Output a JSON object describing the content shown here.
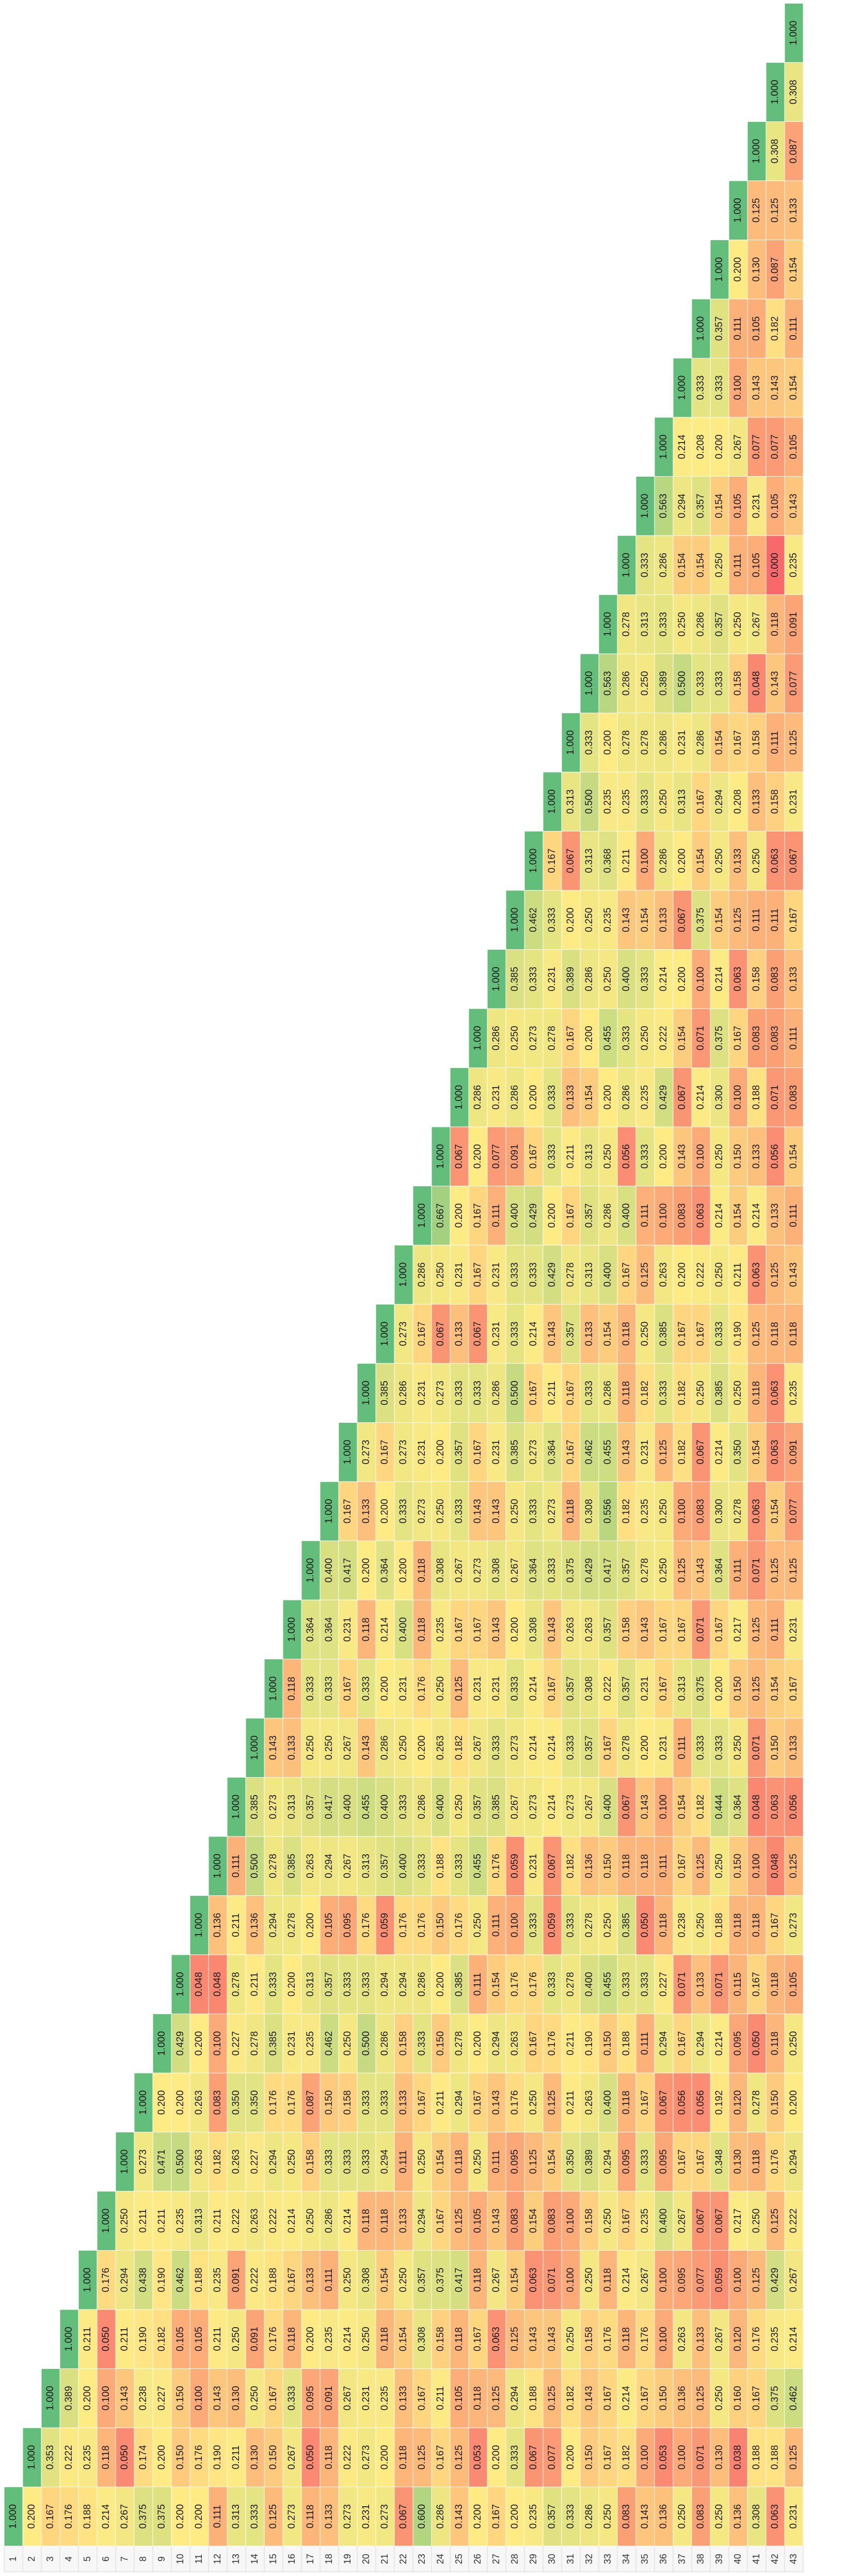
{
  "table": {
    "row_labels": [
      "1",
      "2",
      "3",
      "4",
      "5",
      "6",
      "7",
      "8",
      "9",
      "10",
      "11",
      "12",
      "13",
      "14",
      "15",
      "16",
      "17",
      "18",
      "19",
      "20",
      "21",
      "22",
      "23",
      "24",
      "25",
      "26",
      "27",
      "28",
      "29",
      "30",
      "31",
      "32",
      "33",
      "34",
      "35",
      "36",
      "37",
      "38",
      "39",
      "40",
      "41",
      "42",
      "43"
    ],
    "rows": [
      [
        "1.000"
      ],
      [
        "0.200",
        "1.000"
      ],
      [
        "0.167",
        "0.353",
        "1.000"
      ],
      [
        "0.176",
        "0.222",
        "0.389",
        "1.000"
      ],
      [
        "0.188",
        "0.235",
        "0.200",
        "0.211",
        "1.000"
      ],
      [
        "0.214",
        "0.118",
        "0.100",
        "0.050",
        "0.176",
        "1.000"
      ],
      [
        "0.267",
        "0.050",
        "0.143",
        "0.211",
        "0.294",
        "0.250",
        "1.000"
      ],
      [
        "0.375",
        "0.174",
        "0.238",
        "0.190",
        "0.438",
        "0.211",
        "0.273",
        "1.000"
      ],
      [
        "0.375",
        "0.200",
        "0.227",
        "0.182",
        "0.190",
        "0.211",
        "0.471",
        "0.200",
        "1.000"
      ],
      [
        "0.200",
        "0.150",
        "0.150",
        "0.105",
        "0.462",
        "0.235",
        "0.500",
        "0.200",
        "0.429",
        "1.000"
      ],
      [
        "0.200",
        "0.176",
        "0.100",
        "0.105",
        "0.188",
        "0.313",
        "0.263",
        "0.263",
        "0.200",
        "0.048",
        "1.000"
      ],
      [
        "0.111",
        "0.190",
        "0.143",
        "0.211",
        "0.235",
        "0.211",
        "0.182",
        "0.083",
        "0.100",
        "0.048",
        "0.136",
        "1.000"
      ],
      [
        "0.313",
        "0.211",
        "0.130",
        "0.250",
        "0.091",
        "0.222",
        "0.263",
        "0.350",
        "0.227",
        "0.278",
        "0.211",
        "0.111",
        "1.000"
      ],
      [
        "0.333",
        "0.130",
        "0.250",
        "0.091",
        "0.222",
        "0.263",
        "0.227",
        "0.350",
        "0.278",
        "0.211",
        "0.136",
        "0.500",
        "0.385",
        "1.000"
      ],
      [
        "0.125",
        "0.150",
        "0.167",
        "0.176",
        "0.188",
        "0.222",
        "0.294",
        "0.176",
        "0.385",
        "0.333",
        "0.294",
        "0.278",
        "0.273",
        "0.143",
        "1.000"
      ],
      [
        "0.273",
        "0.267",
        "0.333",
        "0.118",
        "0.167",
        "0.214",
        "0.250",
        "0.176",
        "0.231",
        "0.200",
        "0.278",
        "0.385",
        "0.313",
        "0.133",
        "0.118",
        "1.000"
      ],
      [
        "0.118",
        "0.050",
        "0.095",
        "0.200",
        "0.133",
        "0.250",
        "0.158",
        "0.087",
        "0.235",
        "0.313",
        "0.200",
        "0.263",
        "0.357",
        "0.250",
        "0.333",
        "0.364",
        "1.000"
      ],
      [
        "0.133",
        "0.118",
        "0.091",
        "0.235",
        "0.111",
        "0.286",
        "0.333",
        "0.150",
        "0.462",
        "0.357",
        "0.105",
        "0.294",
        "0.417",
        "0.250",
        "0.333",
        "0.364",
        "0.400",
        "1.000"
      ],
      [
        "0.273",
        "0.222",
        "0.267",
        "0.214",
        "0.250",
        "0.214",
        "0.333",
        "0.158",
        "0.250",
        "0.333",
        "0.095",
        "0.267",
        "0.400",
        "0.267",
        "0.167",
        "0.231",
        "0.417",
        "0.167",
        "1.000"
      ],
      [
        "0.231",
        "0.273",
        "0.231",
        "0.250",
        "0.308",
        "0.118",
        "0.333",
        "0.333",
        "0.500",
        "0.333",
        "0.176",
        "0.313",
        "0.455",
        "0.143",
        "0.333",
        "0.118",
        "0.200",
        "0.133",
        "0.273",
        "1.000"
      ],
      [
        "0.273",
        "0.200",
        "0.235",
        "0.118",
        "0.154",
        "0.118",
        "0.294",
        "0.333",
        "0.286",
        "0.294",
        "0.059",
        "0.357",
        "0.400",
        "0.286",
        "0.200",
        "0.214",
        "0.364",
        "0.200",
        "0.167",
        "0.385",
        "1.000"
      ],
      [
        "0.067",
        "0.118",
        "0.133",
        "0.154",
        "0.250",
        "0.133",
        "0.111",
        "0.133",
        "0.158",
        "0.294",
        "0.176",
        "0.400",
        "0.333",
        "0.250",
        "0.231",
        "0.400",
        "0.200",
        "0.333",
        "0.273",
        "0.286",
        "0.273",
        "1.000"
      ],
      [
        "0.600",
        "0.125",
        "0.167",
        "0.308",
        "0.357",
        "0.294",
        "0.250",
        "0.167",
        "0.333",
        "0.286",
        "0.176",
        "0.333",
        "0.286",
        "0.200",
        "0.176",
        "0.118",
        "0.118",
        "0.273",
        "0.231",
        "0.231",
        "0.167",
        "0.286",
        "1.000"
      ],
      [
        "0.286",
        "0.167",
        "0.211",
        "0.158",
        "0.375",
        "0.167",
        "0.154",
        "0.211",
        "0.150",
        "0.200",
        "0.150",
        "0.188",
        "0.400",
        "0.263",
        "0.250",
        "0.235",
        "0.308",
        "0.250",
        "0.200",
        "0.273",
        "0.067",
        "0.250",
        "0.667",
        "1.000"
      ],
      [
        "0.143",
        "0.125",
        "0.105",
        "0.118",
        "0.417",
        "0.125",
        "0.118",
        "0.294",
        "0.278",
        "0.385",
        "0.176",
        "0.333",
        "0.250",
        "0.182",
        "0.125",
        "0.167",
        "0.267",
        "0.333",
        "0.357",
        "0.333",
        "0.133",
        "0.231",
        "0.200",
        "0.067",
        "1.000"
      ],
      [
        "0.200",
        "0.053",
        "0.118",
        "0.167",
        "0.118",
        "0.105",
        "0.250",
        "0.167",
        "0.200",
        "0.111",
        "0.250",
        "0.455",
        "0.357",
        "0.267",
        "0.231",
        "0.167",
        "0.273",
        "0.143",
        "0.167",
        "0.333",
        "0.067",
        "0.167",
        "0.167",
        "0.200",
        "0.286",
        "1.000"
      ],
      [
        "0.167",
        "0.200",
        "0.125",
        "0.063",
        "0.267",
        "0.143",
        "0.111",
        "0.143",
        "0.294",
        "0.154",
        "0.111",
        "0.176",
        "0.385",
        "0.333",
        "0.231",
        "0.143",
        "0.308",
        "0.143",
        "0.231",
        "0.286",
        "0.231",
        "0.231",
        "0.111",
        "0.077",
        "0.231",
        "0.286",
        "1.000"
      ],
      [
        "0.200",
        "0.333",
        "0.294",
        "0.125",
        "0.154",
        "0.083",
        "0.095",
        "0.176",
        "0.263",
        "0.176",
        "0.100",
        "0.059",
        "0.267",
        "0.273",
        "0.333",
        "0.200",
        "0.267",
        "0.250",
        "0.385",
        "0.500",
        "0.333",
        "0.333",
        "0.400",
        "0.091",
        "0.286",
        "0.250",
        "0.385",
        "1.000"
      ],
      [
        "0.235",
        "0.067",
        "0.188",
        "0.143",
        "0.063",
        "0.154",
        "0.125",
        "0.250",
        "0.167",
        "0.176",
        "0.333",
        "0.231",
        "0.273",
        "0.214",
        "0.214",
        "0.308",
        "0.364",
        "0.333",
        "0.273",
        "0.167",
        "0.214",
        "0.333",
        "0.429",
        "0.167",
        "0.200",
        "0.273",
        "0.333",
        "0.462",
        "1.000"
      ],
      [
        "0.357",
        "0.077",
        "0.125",
        "0.143",
        "0.071",
        "0.083",
        "0.154",
        "0.125",
        "0.176",
        "0.333",
        "0.059",
        "0.067",
        "0.214",
        "0.214",
        "0.167",
        "0.143",
        "0.333",
        "0.273",
        "0.364",
        "0.211",
        "0.143",
        "0.429",
        "0.200",
        "0.333",
        "0.333",
        "0.278",
        "0.231",
        "0.333",
        "0.167",
        "1.000"
      ],
      [
        "0.333",
        "0.200",
        "0.182",
        "0.250",
        "0.100",
        "0.100",
        "0.350",
        "0.211",
        "0.211",
        "0.278",
        "0.333",
        "0.182",
        "0.273",
        "0.333",
        "0.357",
        "0.263",
        "0.375",
        "0.118",
        "0.167",
        "0.167",
        "0.357",
        "0.278",
        "0.167",
        "0.211",
        "0.133",
        "0.167",
        "0.389",
        "0.200",
        "0.067",
        "0.313",
        "1.000"
      ],
      [
        "0.286",
        "0.150",
        "0.143",
        "0.158",
        "0.250",
        "0.158",
        "0.389",
        "0.263",
        "0.190",
        "0.400",
        "0.278",
        "0.136",
        "0.267",
        "0.357",
        "0.308",
        "0.263",
        "0.429",
        "0.308",
        "0.462",
        "0.333",
        "0.133",
        "0.313",
        "0.357",
        "0.313",
        "0.154",
        "0.200",
        "0.286",
        "0.250",
        "0.313",
        "0.500",
        "0.333",
        "1.000"
      ],
      [
        "0.250",
        "0.167",
        "0.167",
        "0.176",
        "0.118",
        "0.250",
        "0.294",
        "0.400",
        "0.150",
        "0.455",
        "0.250",
        "0.150",
        "0.400",
        "0.167",
        "0.222",
        "0.357",
        "0.417",
        "0.556",
        "0.455",
        "0.286",
        "0.154",
        "0.400",
        "0.286",
        "0.250",
        "0.200",
        "0.455",
        "0.250",
        "0.235",
        "0.368",
        "0.235",
        "0.200",
        "0.563",
        "1.000"
      ],
      [
        "0.083",
        "0.182",
        "0.214",
        "0.118",
        "0.214",
        "0.167",
        "0.095",
        "0.118",
        "0.188",
        "0.333",
        "0.385",
        "0.118",
        "0.067",
        "0.278",
        "0.357",
        "0.158",
        "0.357",
        "0.182",
        "0.143",
        "0.118",
        "0.118",
        "0.167",
        "0.400",
        "0.056",
        "0.286",
        "0.333",
        "0.400",
        "0.143",
        "0.211",
        "0.235",
        "0.278",
        "0.286",
        "0.278",
        "1.000"
      ],
      [
        "0.143",
        "0.100",
        "0.167",
        "0.176",
        "0.267",
        "0.235",
        "0.333",
        "0.167",
        "0.111",
        "0.333",
        "0.050",
        "0.118",
        "0.143",
        "0.200",
        "0.231",
        "0.143",
        "0.278",
        "0.235",
        "0.231",
        "0.182",
        "0.250",
        "0.125",
        "0.111",
        "0.333",
        "0.235",
        "0.250",
        "0.333",
        "0.154",
        "0.100",
        "0.333",
        "0.278",
        "0.250",
        "0.313",
        "0.333",
        "1.000"
      ],
      [
        "0.136",
        "0.053",
        "0.150",
        "0.100",
        "0.100",
        "0.400",
        "0.095",
        "0.067",
        "0.294",
        "0.227",
        "0.118",
        "0.111",
        "0.100",
        "0.231",
        "0.167",
        "0.167",
        "0.250",
        "0.250",
        "0.125",
        "0.333",
        "0.385",
        "0.263",
        "0.100",
        "0.200",
        "0.429",
        "0.222",
        "0.214",
        "0.133",
        "0.286",
        "0.250",
        "0.286",
        "0.389",
        "0.333",
        "0.286",
        "0.563",
        "1.000"
      ],
      [
        "0.250",
        "0.100",
        "0.136",
        "0.263",
        "0.095",
        "0.267",
        "0.167",
        "0.056",
        "0.167",
        "0.071",
        "0.238",
        "0.167",
        "0.154",
        "0.111",
        "0.313",
        "0.167",
        "0.125",
        "0.100",
        "0.182",
        "0.182",
        "0.167",
        "0.200",
        "0.083",
        "0.143",
        "0.067",
        "0.154",
        "0.200",
        "0.067",
        "0.200",
        "0.313",
        "0.231",
        "0.500",
        "0.250",
        "0.154",
        "0.294",
        "0.214",
        "1.000"
      ],
      [
        "0.083",
        "0.071",
        "0.125",
        "0.133",
        "0.077",
        "0.067",
        "0.167",
        "0.056",
        "0.294",
        "0.133",
        "0.250",
        "0.125",
        "0.182",
        "0.333",
        "0.375",
        "0.071",
        "0.143",
        "0.083",
        "0.067",
        "0.250",
        "0.167",
        "0.222",
        "0.063",
        "0.100",
        "0.214",
        "0.071",
        "0.100",
        "0.375",
        "0.154",
        "0.167",
        "0.286",
        "0.333",
        "0.286",
        "0.154",
        "0.357",
        "0.208",
        "0.333",
        "1.000"
      ],
      [
        "0.250",
        "0.130",
        "0.250",
        "0.267",
        "0.059",
        "0.067",
        "0.348",
        "0.192",
        "0.214",
        "0.071",
        "0.188",
        "0.250",
        "0.444",
        "0.333",
        "0.200",
        "0.167",
        "0.364",
        "0.300",
        "0.214",
        "0.385",
        "0.333",
        "0.250",
        "0.214",
        "0.250",
        "0.300",
        "0.375",
        "0.214",
        "0.154",
        "0.250",
        "0.294",
        "0.154",
        "0.333",
        "0.357",
        "0.250",
        "0.154",
        "0.200",
        "0.333",
        "0.357",
        "1.000"
      ],
      [
        "0.136",
        "0.038",
        "0.160",
        "0.120",
        "0.100",
        "0.217",
        "0.130",
        "0.120",
        "0.095",
        "0.115",
        "0.118",
        "0.150",
        "0.364",
        "0.250",
        "0.150",
        "0.217",
        "0.111",
        "0.278",
        "0.350",
        "0.250",
        "0.190",
        "0.211",
        "0.154",
        "0.150",
        "0.100",
        "0.167",
        "0.063",
        "0.125",
        "0.133",
        "0.208",
        "0.167",
        "0.158",
        "0.250",
        "0.111",
        "0.105",
        "0.267",
        "0.100",
        "0.111",
        "0.200",
        "1.000"
      ],
      [
        "0.308",
        "0.188",
        "0.167",
        "0.176",
        "0.125",
        "0.250",
        "0.118",
        "0.278",
        "0.050",
        "0.167",
        "0.118",
        "0.100",
        "0.048",
        "0.071",
        "0.125",
        "0.125",
        "0.071",
        "0.063",
        "0.154",
        "0.118",
        "0.125",
        "0.063",
        "0.214",
        "0.133",
        "0.188",
        "0.083",
        "0.158",
        "0.111",
        "0.250",
        "0.133",
        "0.158",
        "0.048",
        "0.267",
        "0.105",
        "0.231",
        "0.077",
        "0.143",
        "0.105",
        "0.130",
        "0.125",
        "1.000"
      ],
      [
        "0.063",
        "0.188",
        "0.375",
        "0.235",
        "0.429",
        "0.125",
        "0.176",
        "0.150",
        "0.118",
        "0.118",
        "0.167",
        "0.048",
        "0.063",
        "0.150",
        "0.154",
        "0.111",
        "0.125",
        "0.154",
        "0.063",
        "0.063",
        "0.118",
        "0.125",
        "0.133",
        "0.056",
        "0.071",
        "0.083",
        "0.083",
        "0.111",
        "0.063",
        "0.158",
        "0.111",
        "0.143",
        "0.118",
        "0.000",
        "0.105",
        "0.077",
        "0.143",
        "0.182",
        "0.087",
        "0.125",
        "0.308",
        "1.000"
      ],
      [
        "0.231",
        "0.125",
        "0.462",
        "0.214",
        "0.267",
        "0.222",
        "0.294",
        "0.200",
        "0.250",
        "0.105",
        "0.273",
        "0.125",
        "0.056",
        "0.133",
        "0.167",
        "0.231",
        "0.125",
        "0.077",
        "0.091",
        "0.235",
        "0.118",
        "0.143",
        "0.111",
        "0.154",
        "0.083",
        "0.111",
        "0.133",
        "0.167",
        "0.067",
        "0.231",
        "0.125",
        "0.077",
        "0.091",
        "0.235",
        "0.143",
        "0.105",
        "0.154",
        "0.111",
        "0.154",
        "0.133",
        "0.087",
        "0.308",
        "1.000"
      ]
    ]
  }
}
